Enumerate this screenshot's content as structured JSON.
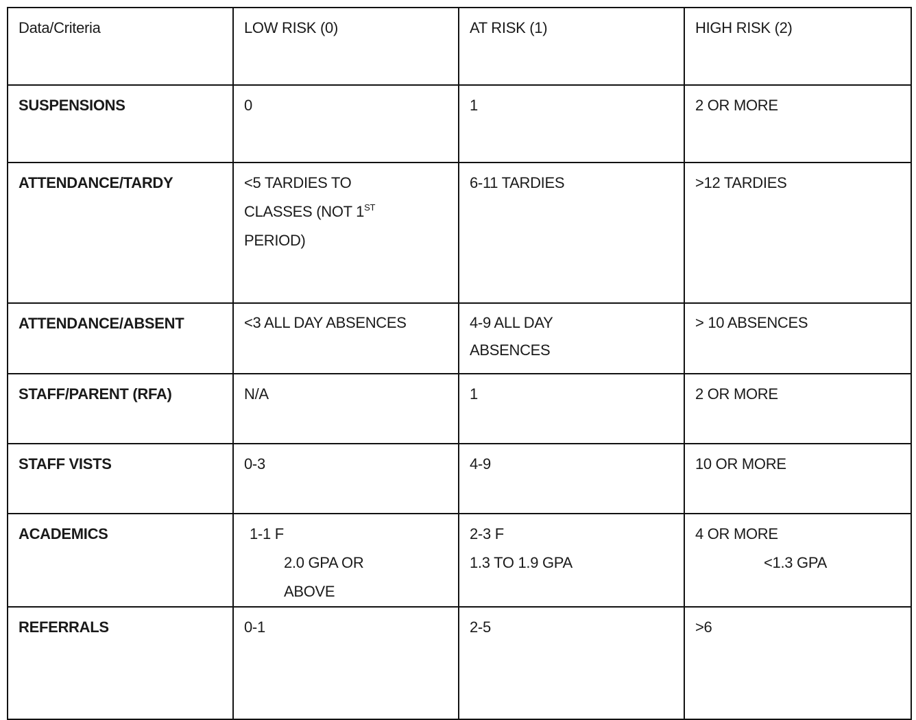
{
  "table": {
    "header": [
      "Data/Criteria",
      "LOW RISK (0)",
      "AT RISK (1)",
      "HIGH RISK (2)"
    ],
    "rows": [
      {
        "label": "SUSPENSIONS",
        "cells": [
          [
            {
              "text": "0"
            }
          ],
          [
            {
              "text": "1"
            }
          ],
          [
            {
              "text": "2 OR MORE"
            }
          ]
        ]
      },
      {
        "label": "ATTENDANCE/TARDY",
        "cells": [
          [
            {
              "text": "<5 TARDIES TO"
            },
            {
              "text": "CLASSES (NOT 1",
              "sup": "ST"
            },
            {
              "text": "PERIOD)"
            }
          ],
          [
            {
              "text": "6-11 TARDIES"
            }
          ],
          [
            {
              "text": ">12 TARDIES"
            }
          ]
        ]
      },
      {
        "label": "ATTENDANCE/ABSENT",
        "cells": [
          [
            {
              "text": "<3 ALL DAY ABSENCES"
            }
          ],
          [
            {
              "text": "4-9 ALL DAY"
            },
            {
              "text": "ABSENCES"
            }
          ],
          [
            {
              "text": "> 10 ABSENCES"
            }
          ]
        ]
      },
      {
        "label": "STAFF/PARENT (RFA)",
        "cells": [
          [
            {
              "text": "N/A"
            }
          ],
          [
            {
              "text": "1"
            }
          ],
          [
            {
              "text": "2 OR MORE"
            }
          ]
        ]
      },
      {
        "label": "STAFF VISTS",
        "cells": [
          [
            {
              "text": "0-3"
            }
          ],
          [
            {
              "text": "4-9"
            }
          ],
          [
            {
              "text": "10 OR MORE"
            }
          ]
        ]
      },
      {
        "label": "ACADEMICS",
        "cells": [
          [
            {
              "text": "1-1 F",
              "indent": 1
            },
            {
              "text": "2.0 GPA OR",
              "indent": 2
            },
            {
              "text": "ABOVE",
              "indent": 2
            }
          ],
          [
            {
              "text": "2-3 F"
            },
            {
              "text": "1.3 TO 1.9 GPA"
            }
          ],
          [
            {
              "text": "4 OR MORE"
            },
            {
              "text": "<1.3 GPA",
              "indent": 3
            }
          ]
        ]
      },
      {
        "label": "REFERRALS",
        "cells": [
          [
            {
              "text": "0-1"
            }
          ],
          [
            {
              "text": "2-5"
            }
          ],
          [
            {
              "text": ">6"
            }
          ]
        ]
      }
    ]
  }
}
